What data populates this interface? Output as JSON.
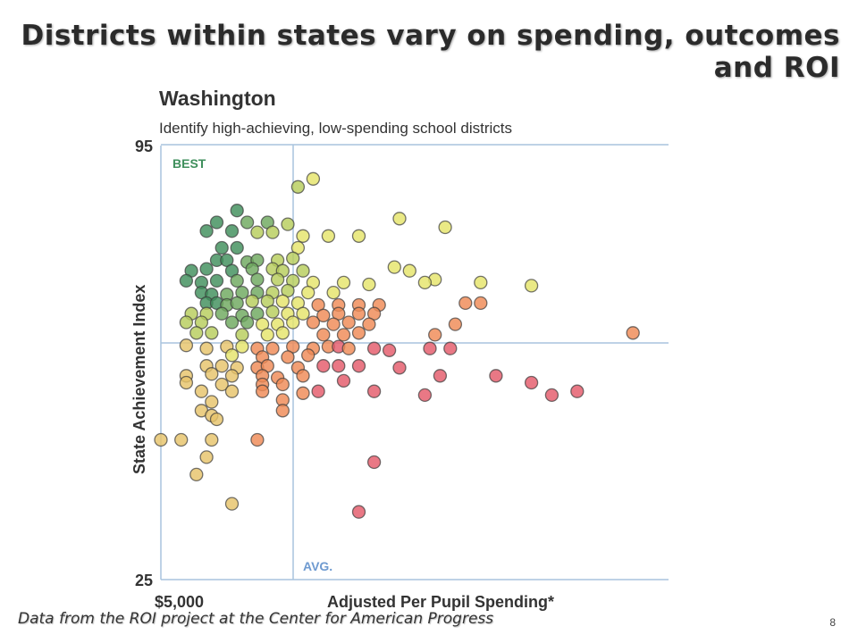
{
  "slide": {
    "title": "Districts within states vary on spending, outcomes and ROI",
    "source_note": "Data from the ROI project at the Center for American Progress",
    "page_number": "8"
  },
  "chart_data": {
    "type": "scatter",
    "title": "Washington",
    "subtitle": "Identify high-achieving, low-spending school districts",
    "xlabel": "Adjusted Per Pupil Spending*",
    "ylabel": "State Achievement Index",
    "x_tick_label": "$5,000",
    "y_tick_labels": [
      "95",
      "25"
    ],
    "ylim": [
      25,
      95
    ],
    "quadrant_labels": {
      "best": "BEST",
      "avg": "AVG."
    },
    "colors": {
      "dark_green": "#3f8f5c",
      "green": "#6ea85e",
      "yellow_green": "#b7cd5c",
      "yellow": "#e5e46a",
      "tan": "#e6c36a",
      "orange": "#ef8a55",
      "red": "#e45a6a",
      "axis_line": "#a9c4de",
      "best_label": "#3f8f5c",
      "avg_label": "#6e9ad0"
    },
    "note": "Position units: x = fraction of the spending axis width from $5,000 (axis max unlabeled); y = State Achievement Index.",
    "points": [
      {
        "x": 0.3,
        "y": 89.5,
        "c": "yellow"
      },
      {
        "x": 0.27,
        "y": 88.2,
        "c": "yellow_green"
      },
      {
        "x": 0.15,
        "y": 84.4,
        "c": "dark_green"
      },
      {
        "x": 0.11,
        "y": 82.5,
        "c": "dark_green"
      },
      {
        "x": 0.17,
        "y": 82.5,
        "c": "green"
      },
      {
        "x": 0.21,
        "y": 82.5,
        "c": "green"
      },
      {
        "x": 0.25,
        "y": 82.2,
        "c": "yellow_green"
      },
      {
        "x": 0.09,
        "y": 81.1,
        "c": "dark_green"
      },
      {
        "x": 0.14,
        "y": 81.1,
        "c": "dark_green"
      },
      {
        "x": 0.19,
        "y": 80.9,
        "c": "yellow_green"
      },
      {
        "x": 0.22,
        "y": 80.9,
        "c": "yellow_green"
      },
      {
        "x": 0.28,
        "y": 80.3,
        "c": "yellow"
      },
      {
        "x": 0.33,
        "y": 80.3,
        "c": "yellow"
      },
      {
        "x": 0.39,
        "y": 80.3,
        "c": "yellow"
      },
      {
        "x": 0.47,
        "y": 83.1,
        "c": "yellow"
      },
      {
        "x": 0.56,
        "y": 81.7,
        "c": "yellow"
      },
      {
        "x": 0.12,
        "y": 78.4,
        "c": "dark_green"
      },
      {
        "x": 0.15,
        "y": 78.4,
        "c": "dark_green"
      },
      {
        "x": 0.27,
        "y": 78.4,
        "c": "yellow"
      },
      {
        "x": 0.11,
        "y": 76.4,
        "c": "dark_green"
      },
      {
        "x": 0.13,
        "y": 76.4,
        "c": "dark_green"
      },
      {
        "x": 0.17,
        "y": 76.1,
        "c": "green"
      },
      {
        "x": 0.19,
        "y": 76.4,
        "c": "green"
      },
      {
        "x": 0.23,
        "y": 76.4,
        "c": "yellow_green"
      },
      {
        "x": 0.26,
        "y": 76.7,
        "c": "yellow_green"
      },
      {
        "x": 0.06,
        "y": 74.7,
        "c": "dark_green"
      },
      {
        "x": 0.09,
        "y": 75.0,
        "c": "dark_green"
      },
      {
        "x": 0.14,
        "y": 74.7,
        "c": "dark_green"
      },
      {
        "x": 0.18,
        "y": 75.0,
        "c": "green"
      },
      {
        "x": 0.22,
        "y": 75.0,
        "c": "yellow_green"
      },
      {
        "x": 0.24,
        "y": 74.7,
        "c": "yellow_green"
      },
      {
        "x": 0.28,
        "y": 74.7,
        "c": "yellow_green"
      },
      {
        "x": 0.46,
        "y": 75.3,
        "c": "yellow"
      },
      {
        "x": 0.49,
        "y": 74.7,
        "c": "yellow"
      },
      {
        "x": 0.05,
        "y": 73.1,
        "c": "dark_green"
      },
      {
        "x": 0.08,
        "y": 72.8,
        "c": "dark_green"
      },
      {
        "x": 0.11,
        "y": 73.1,
        "c": "dark_green"
      },
      {
        "x": 0.15,
        "y": 73.1,
        "c": "green"
      },
      {
        "x": 0.19,
        "y": 73.3,
        "c": "green"
      },
      {
        "x": 0.23,
        "y": 73.3,
        "c": "yellow_green"
      },
      {
        "x": 0.26,
        "y": 73.1,
        "c": "yellow_green"
      },
      {
        "x": 0.3,
        "y": 72.8,
        "c": "yellow"
      },
      {
        "x": 0.36,
        "y": 72.8,
        "c": "yellow"
      },
      {
        "x": 0.41,
        "y": 72.5,
        "c": "yellow"
      },
      {
        "x": 0.54,
        "y": 73.3,
        "c": "yellow"
      },
      {
        "x": 0.52,
        "y": 72.8,
        "c": "yellow"
      },
      {
        "x": 0.63,
        "y": 72.8,
        "c": "yellow"
      },
      {
        "x": 0.73,
        "y": 72.3,
        "c": "yellow"
      },
      {
        "x": 0.08,
        "y": 71.2,
        "c": "dark_green"
      },
      {
        "x": 0.1,
        "y": 70.9,
        "c": "dark_green"
      },
      {
        "x": 0.13,
        "y": 70.9,
        "c": "green"
      },
      {
        "x": 0.16,
        "y": 71.2,
        "c": "green"
      },
      {
        "x": 0.19,
        "y": 71.2,
        "c": "green"
      },
      {
        "x": 0.22,
        "y": 71.2,
        "c": "yellow_green"
      },
      {
        "x": 0.25,
        "y": 71.5,
        "c": "yellow_green"
      },
      {
        "x": 0.29,
        "y": 71.2,
        "c": "yellow"
      },
      {
        "x": 0.34,
        "y": 71.2,
        "c": "yellow"
      },
      {
        "x": 0.09,
        "y": 69.5,
        "c": "dark_green"
      },
      {
        "x": 0.11,
        "y": 69.5,
        "c": "dark_green"
      },
      {
        "x": 0.13,
        "y": 69.2,
        "c": "green"
      },
      {
        "x": 0.15,
        "y": 69.5,
        "c": "green"
      },
      {
        "x": 0.18,
        "y": 69.8,
        "c": "yellow_green"
      },
      {
        "x": 0.21,
        "y": 69.8,
        "c": "yellow_green"
      },
      {
        "x": 0.24,
        "y": 69.8,
        "c": "yellow"
      },
      {
        "x": 0.27,
        "y": 69.5,
        "c": "yellow"
      },
      {
        "x": 0.31,
        "y": 69.2,
        "c": "orange"
      },
      {
        "x": 0.35,
        "y": 69.2,
        "c": "orange"
      },
      {
        "x": 0.39,
        "y": 69.2,
        "c": "orange"
      },
      {
        "x": 0.43,
        "y": 69.2,
        "c": "orange"
      },
      {
        "x": 0.6,
        "y": 69.5,
        "c": "orange"
      },
      {
        "x": 0.63,
        "y": 69.5,
        "c": "orange"
      },
      {
        "x": 0.06,
        "y": 67.8,
        "c": "yellow_green"
      },
      {
        "x": 0.09,
        "y": 67.8,
        "c": "yellow_green"
      },
      {
        "x": 0.12,
        "y": 67.8,
        "c": "green"
      },
      {
        "x": 0.16,
        "y": 67.5,
        "c": "green"
      },
      {
        "x": 0.19,
        "y": 67.8,
        "c": "green"
      },
      {
        "x": 0.22,
        "y": 68.1,
        "c": "yellow_green"
      },
      {
        "x": 0.25,
        "y": 67.8,
        "c": "yellow"
      },
      {
        "x": 0.28,
        "y": 67.8,
        "c": "yellow"
      },
      {
        "x": 0.32,
        "y": 67.5,
        "c": "orange"
      },
      {
        "x": 0.35,
        "y": 67.8,
        "c": "orange"
      },
      {
        "x": 0.39,
        "y": 67.8,
        "c": "orange"
      },
      {
        "x": 0.42,
        "y": 67.8,
        "c": "orange"
      },
      {
        "x": 0.05,
        "y": 66.4,
        "c": "yellow_green"
      },
      {
        "x": 0.08,
        "y": 66.4,
        "c": "yellow_green"
      },
      {
        "x": 0.14,
        "y": 66.4,
        "c": "green"
      },
      {
        "x": 0.17,
        "y": 66.4,
        "c": "green"
      },
      {
        "x": 0.2,
        "y": 66.1,
        "c": "yellow"
      },
      {
        "x": 0.23,
        "y": 66.1,
        "c": "yellow"
      },
      {
        "x": 0.26,
        "y": 66.4,
        "c": "yellow"
      },
      {
        "x": 0.3,
        "y": 66.4,
        "c": "orange"
      },
      {
        "x": 0.34,
        "y": 66.1,
        "c": "orange"
      },
      {
        "x": 0.37,
        "y": 66.4,
        "c": "orange"
      },
      {
        "x": 0.41,
        "y": 66.1,
        "c": "orange"
      },
      {
        "x": 0.58,
        "y": 66.1,
        "c": "orange"
      },
      {
        "x": 0.07,
        "y": 64.7,
        "c": "yellow_green"
      },
      {
        "x": 0.1,
        "y": 64.7,
        "c": "yellow_green"
      },
      {
        "x": 0.16,
        "y": 64.4,
        "c": "yellow_green"
      },
      {
        "x": 0.21,
        "y": 64.4,
        "c": "yellow"
      },
      {
        "x": 0.24,
        "y": 64.7,
        "c": "yellow"
      },
      {
        "x": 0.32,
        "y": 64.4,
        "c": "orange"
      },
      {
        "x": 0.36,
        "y": 64.4,
        "c": "orange"
      },
      {
        "x": 0.39,
        "y": 64.7,
        "c": "orange"
      },
      {
        "x": 0.54,
        "y": 64.4,
        "c": "orange"
      },
      {
        "x": 0.93,
        "y": 64.7,
        "c": "orange"
      },
      {
        "x": 0.05,
        "y": 62.7,
        "c": "tan"
      },
      {
        "x": 0.09,
        "y": 62.2,
        "c": "tan"
      },
      {
        "x": 0.13,
        "y": 62.5,
        "c": "tan"
      },
      {
        "x": 0.16,
        "y": 62.5,
        "c": "yellow"
      },
      {
        "x": 0.19,
        "y": 62.2,
        "c": "orange"
      },
      {
        "x": 0.22,
        "y": 62.2,
        "c": "orange"
      },
      {
        "x": 0.26,
        "y": 62.5,
        "c": "orange"
      },
      {
        "x": 0.3,
        "y": 62.2,
        "c": "orange"
      },
      {
        "x": 0.33,
        "y": 62.5,
        "c": "orange"
      },
      {
        "x": 0.35,
        "y": 62.5,
        "c": "red"
      },
      {
        "x": 0.37,
        "y": 62.2,
        "c": "orange"
      },
      {
        "x": 0.42,
        "y": 62.2,
        "c": "red"
      },
      {
        "x": 0.45,
        "y": 61.9,
        "c": "red"
      },
      {
        "x": 0.53,
        "y": 62.2,
        "c": "red"
      },
      {
        "x": 0.57,
        "y": 62.2,
        "c": "red"
      },
      {
        "x": 0.14,
        "y": 61.1,
        "c": "yellow"
      },
      {
        "x": 0.2,
        "y": 60.8,
        "c": "orange"
      },
      {
        "x": 0.25,
        "y": 60.8,
        "c": "orange"
      },
      {
        "x": 0.29,
        "y": 61.1,
        "c": "orange"
      },
      {
        "x": 0.09,
        "y": 59.4,
        "c": "tan"
      },
      {
        "x": 0.12,
        "y": 59.4,
        "c": "tan"
      },
      {
        "x": 0.15,
        "y": 59.1,
        "c": "tan"
      },
      {
        "x": 0.19,
        "y": 59.1,
        "c": "orange"
      },
      {
        "x": 0.21,
        "y": 59.4,
        "c": "orange"
      },
      {
        "x": 0.27,
        "y": 59.1,
        "c": "orange"
      },
      {
        "x": 0.32,
        "y": 59.4,
        "c": "red"
      },
      {
        "x": 0.35,
        "y": 59.4,
        "c": "red"
      },
      {
        "x": 0.39,
        "y": 59.4,
        "c": "red"
      },
      {
        "x": 0.47,
        "y": 59.1,
        "c": "red"
      },
      {
        "x": 0.05,
        "y": 57.8,
        "c": "tan"
      },
      {
        "x": 0.1,
        "y": 58.1,
        "c": "tan"
      },
      {
        "x": 0.14,
        "y": 57.8,
        "c": "tan"
      },
      {
        "x": 0.2,
        "y": 57.8,
        "c": "orange"
      },
      {
        "x": 0.23,
        "y": 57.5,
        "c": "orange"
      },
      {
        "x": 0.28,
        "y": 57.8,
        "c": "orange"
      },
      {
        "x": 0.55,
        "y": 57.8,
        "c": "red"
      },
      {
        "x": 0.66,
        "y": 57.8,
        "c": "red"
      },
      {
        "x": 0.73,
        "y": 56.7,
        "c": "red"
      },
      {
        "x": 0.05,
        "y": 56.7,
        "c": "tan"
      },
      {
        "x": 0.12,
        "y": 56.4,
        "c": "tan"
      },
      {
        "x": 0.2,
        "y": 56.4,
        "c": "orange"
      },
      {
        "x": 0.24,
        "y": 56.4,
        "c": "orange"
      },
      {
        "x": 0.36,
        "y": 57.0,
        "c": "red"
      },
      {
        "x": 0.08,
        "y": 55.3,
        "c": "tan"
      },
      {
        "x": 0.14,
        "y": 55.3,
        "c": "tan"
      },
      {
        "x": 0.2,
        "y": 55.3,
        "c": "orange"
      },
      {
        "x": 0.28,
        "y": 55.0,
        "c": "orange"
      },
      {
        "x": 0.31,
        "y": 55.3,
        "c": "red"
      },
      {
        "x": 0.42,
        "y": 55.3,
        "c": "red"
      },
      {
        "x": 0.52,
        "y": 54.7,
        "c": "red"
      },
      {
        "x": 0.77,
        "y": 54.7,
        "c": "red"
      },
      {
        "x": 0.82,
        "y": 55.3,
        "c": "red"
      },
      {
        "x": 0.1,
        "y": 53.6,
        "c": "tan"
      },
      {
        "x": 0.24,
        "y": 53.9,
        "c": "orange"
      },
      {
        "x": 0.08,
        "y": 52.2,
        "c": "tan"
      },
      {
        "x": 0.1,
        "y": 51.4,
        "c": "tan"
      },
      {
        "x": 0.24,
        "y": 52.2,
        "c": "orange"
      },
      {
        "x": 0.11,
        "y": 50.8,
        "c": "tan"
      },
      {
        "x": 0.0,
        "y": 47.5,
        "c": "tan"
      },
      {
        "x": 0.04,
        "y": 47.5,
        "c": "tan"
      },
      {
        "x": 0.1,
        "y": 47.5,
        "c": "tan"
      },
      {
        "x": 0.19,
        "y": 47.5,
        "c": "orange"
      },
      {
        "x": 0.09,
        "y": 44.7,
        "c": "tan"
      },
      {
        "x": 0.07,
        "y": 41.9,
        "c": "tan"
      },
      {
        "x": 0.42,
        "y": 43.9,
        "c": "red"
      },
      {
        "x": 0.14,
        "y": 37.2,
        "c": "tan"
      },
      {
        "x": 0.39,
        "y": 35.9,
        "c": "red"
      }
    ]
  }
}
